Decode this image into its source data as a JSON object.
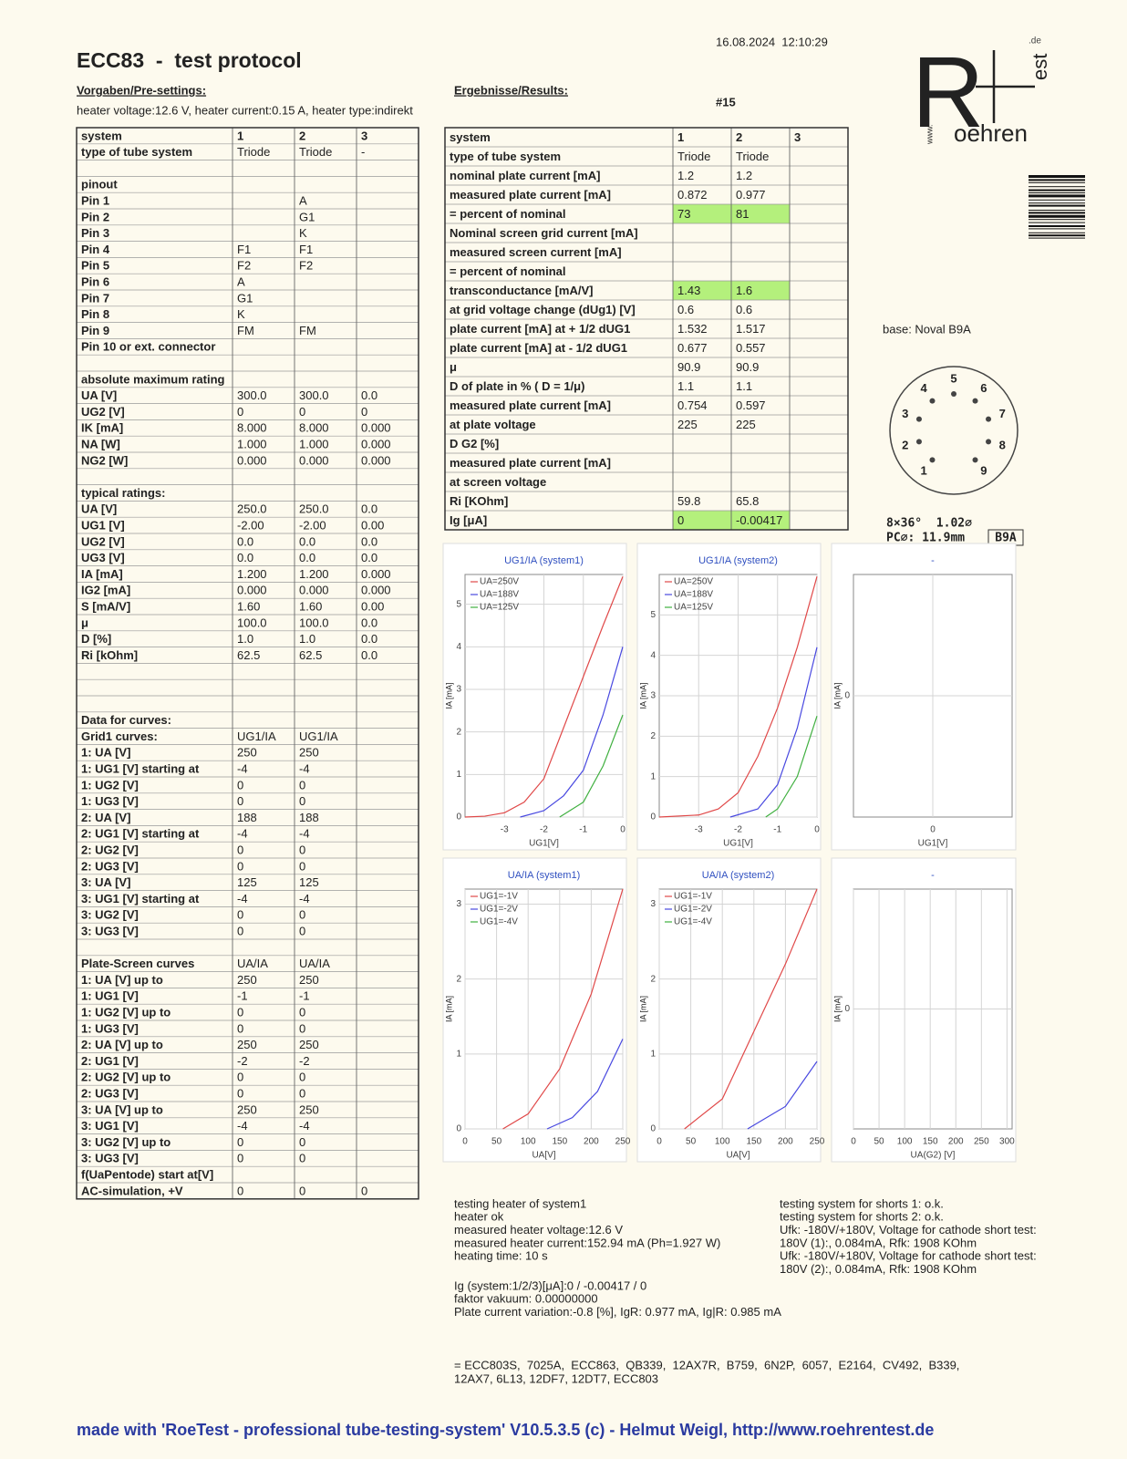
{
  "header": {
    "title": "ECC83  -  test protocol",
    "timestamp": "16.08.2024  12:10:29",
    "number": "#15",
    "presettings_label": "Vorgaben/Pre-settings:",
    "heater": "heater voltage:12.6 V, heater current:0.15 A, heater type:indirekt",
    "results_label": "Ergebnisse/Results:"
  },
  "logo": {
    "r": "R",
    "rest": "oehren",
    "www": "www.",
    "est": "est",
    "de": ".de"
  },
  "left_table": {
    "rows": [
      [
        "system",
        "1",
        "2",
        "3"
      ],
      [
        "type of tube system",
        "Triode",
        "Triode",
        "-"
      ],
      [
        null,
        null,
        null,
        null
      ],
      [
        "pinout",
        null,
        null,
        null
      ],
      [
        "Pin 1",
        null,
        "A",
        null
      ],
      [
        "Pin 2",
        null,
        "G1",
        null
      ],
      [
        "Pin 3",
        null,
        "K",
        null
      ],
      [
        "Pin 4",
        "F1",
        "F1",
        null
      ],
      [
        "Pin 5",
        "F2",
        "F2",
        null
      ],
      [
        "Pin 6",
        "A",
        null,
        null
      ],
      [
        "Pin 7",
        "G1",
        null,
        null
      ],
      [
        "Pin 8",
        "K",
        null,
        null
      ],
      [
        "Pin 9",
        "FM",
        "FM",
        null
      ],
      [
        "Pin 10 or ext. connector",
        null,
        null,
        null
      ],
      [
        null,
        null,
        null,
        null
      ],
      [
        "absolute maximum rating",
        null,
        null,
        null
      ],
      [
        "UA [V]",
        "300.0",
        "300.0",
        "0.0"
      ],
      [
        "UG2 [V]",
        "0",
        "0",
        "0"
      ],
      [
        "IK [mA]",
        "8.000",
        "8.000",
        "0.000"
      ],
      [
        "NA [W]",
        "1.000",
        "1.000",
        "0.000"
      ],
      [
        "NG2 [W]",
        "0.000",
        "0.000",
        "0.000"
      ],
      [
        null,
        null,
        null,
        null
      ],
      [
        "typical ratings:",
        null,
        null,
        null
      ],
      [
        "UA [V]",
        "250.0",
        "250.0",
        "0.0"
      ],
      [
        "UG1 [V]",
        "-2.00",
        "-2.00",
        "0.00"
      ],
      [
        "UG2 [V]",
        "0.0",
        "0.0",
        "0.0"
      ],
      [
        "UG3 [V]",
        "0.0",
        "0.0",
        "0.0"
      ],
      [
        "IA [mA]",
        "1.200",
        "1.200",
        "0.000"
      ],
      [
        "IG2 [mA]",
        "0.000",
        "0.000",
        "0.000"
      ],
      [
        "S [mA/V]",
        "1.60",
        "1.60",
        "0.00"
      ],
      [
        "μ",
        "100.0",
        "100.0",
        "0.0"
      ],
      [
        "D [%]",
        "1.0",
        "1.0",
        "0.0"
      ],
      [
        "Ri [kOhm]",
        "62.5",
        "62.5",
        "0.0"
      ],
      [
        null,
        null,
        null,
        null
      ],
      [
        null,
        null,
        null,
        null
      ],
      [
        null,
        null,
        null,
        null
      ],
      [
        "Data for curves:",
        null,
        null,
        null
      ],
      [
        "Grid1 curves:",
        "UG1/IA",
        "UG1/IA",
        null
      ],
      [
        "1: UA [V]",
        "250",
        "250",
        null
      ],
      [
        "1: UG1 [V] starting at",
        "-4",
        "-4",
        null
      ],
      [
        "1: UG2 [V]",
        "0",
        "0",
        null
      ],
      [
        "1: UG3 [V]",
        "0",
        "0",
        null
      ],
      [
        "2: UA [V]",
        "188",
        "188",
        null
      ],
      [
        "2: UG1 [V] starting at",
        "-4",
        "-4",
        null
      ],
      [
        "2: UG2 [V]",
        "0",
        "0",
        null
      ],
      [
        "2: UG3 [V]",
        "0",
        "0",
        null
      ],
      [
        "3: UA [V]",
        "125",
        "125",
        null
      ],
      [
        "3: UG1 [V] starting at",
        "-4",
        "-4",
        null
      ],
      [
        "3: UG2 [V]",
        "0",
        "0",
        null
      ],
      [
        "3: UG3 [V]",
        "0",
        "0",
        null
      ],
      [
        null,
        null,
        null,
        null
      ],
      [
        "Plate-Screen curves",
        "UA/IA",
        "UA/IA",
        null
      ],
      [
        "1: UA [V] up to",
        "250",
        "250",
        null
      ],
      [
        "1: UG1 [V]",
        "-1",
        "-1",
        null
      ],
      [
        "1: UG2 [V] up to",
        "0",
        "0",
        null
      ],
      [
        "1: UG3 [V]",
        "0",
        "0",
        null
      ],
      [
        "2: UA [V] up to",
        "250",
        "250",
        null
      ],
      [
        "2: UG1 [V]",
        "-2",
        "-2",
        null
      ],
      [
        "2: UG2 [V] up to",
        "0",
        "0",
        null
      ],
      [
        "2: UG3 [V]",
        "0",
        "0",
        null
      ],
      [
        "3: UA [V] up to",
        "250",
        "250",
        null
      ],
      [
        "3: UG1 [V]",
        "-4",
        "-4",
        null
      ],
      [
        "3: UG2 [V] up to",
        "0",
        "0",
        null
      ],
      [
        "3: UG3 [V]",
        "0",
        "0",
        null
      ],
      [
        "f(UaPentode) start at[V]",
        null,
        null,
        null
      ],
      [
        "AC-simulation, +V",
        "0",
        "0",
        "0"
      ]
    ]
  },
  "right_table": {
    "highlight_color": "#b4f07c",
    "highlighted_cells": [
      [
        4,
        1
      ],
      [
        4,
        2
      ],
      [
        8,
        1
      ],
      [
        8,
        2
      ],
      [
        20,
        1
      ],
      [
        20,
        2
      ]
    ],
    "rows": [
      [
        "system",
        "1",
        "2",
        "3"
      ],
      [
        "type of tube system",
        "Triode",
        "Triode",
        null
      ],
      [
        "nominal plate current [mA]",
        "1.2",
        "1.2",
        null
      ],
      [
        "measured plate current [mA]",
        "0.872",
        "0.977",
        null
      ],
      [
        "= percent of nominal",
        "73",
        "81",
        null
      ],
      [
        "Nominal screen grid current [mA]",
        null,
        null,
        null
      ],
      [
        "measured screen current [mA]",
        null,
        null,
        null
      ],
      [
        "= percent of nominal",
        null,
        null,
        null
      ],
      [
        "transconductance [mA/V]",
        "1.43",
        "1.6",
        null
      ],
      [
        "at grid voltage change (dUg1) [V]",
        "0.6",
        "0.6",
        null
      ],
      [
        "plate current [mA] at + 1/2 dUG1",
        "1.532",
        "1.517",
        null
      ],
      [
        "plate current [mA] at - 1/2 dUG1",
        "0.677",
        "0.557",
        null
      ],
      [
        "μ",
        "90.9",
        "90.9",
        null
      ],
      [
        "D of plate in % ( D = 1/μ)",
        "1.1",
        "1.1",
        null
      ],
      [
        "measured plate current [mA]",
        "0.754",
        "0.597",
        null
      ],
      [
        "at plate voltage",
        "225",
        "225",
        null
      ],
      [
        "D G2 [%]",
        null,
        null,
        null
      ],
      [
        "measured plate current [mA]",
        null,
        null,
        null
      ],
      [
        "at screen voltage",
        null,
        null,
        null
      ],
      [
        "Ri [KOhm]",
        "59.8",
        "65.8",
        null
      ],
      [
        "Ig [μA]",
        "0",
        "-0.00417",
        null
      ]
    ]
  },
  "base": {
    "label": "base: Noval B9A",
    "pins": [
      "1",
      "2",
      "3",
      "4",
      "5",
      "6",
      "7",
      "8",
      "9"
    ],
    "spec1": "8×36°  1.02⌀",
    "spec2": "PC⌀: 11.9mm",
    "code": "B9A"
  },
  "charts": [
    {
      "title": "UG1/IA (system1)",
      "x_label": "UG1[V]",
      "y_label": "IA [mA]",
      "xlim": [
        -4,
        0
      ],
      "ylim": [
        0,
        5.7
      ],
      "xticks": [
        -3,
        -2,
        -1,
        0
      ],
      "yticks": [
        0,
        1,
        2,
        3,
        4,
        5
      ],
      "series": [
        {
          "name": "UA=250V",
          "color": "#e04848",
          "x": [
            -4,
            -3.5,
            -3,
            -2.5,
            -2,
            -1.5,
            -1,
            -0.5,
            0
          ],
          "y": [
            0,
            0.02,
            0.1,
            0.35,
            0.9,
            2.1,
            3.3,
            4.5,
            5.65
          ]
        },
        {
          "name": "UA=188V",
          "color": "#4848e0",
          "x": [
            -2.6,
            -2,
            -1.5,
            -1,
            -0.5,
            0
          ],
          "y": [
            0,
            0.15,
            0.5,
            1.1,
            2.4,
            4.0
          ]
        },
        {
          "name": "UA=125V",
          "color": "#40b040",
          "x": [
            -1.6,
            -1,
            -0.5,
            0
          ],
          "y": [
            0,
            0.35,
            1.2,
            2.4
          ]
        }
      ]
    },
    {
      "title": "UG1/IA (system2)",
      "x_label": "UG1[V]",
      "y_label": "IA [mA]",
      "xlim": [
        -4,
        0
      ],
      "ylim": [
        0,
        6
      ],
      "xticks": [
        -3,
        -2,
        -1,
        0
      ],
      "yticks": [
        0,
        1,
        2,
        3,
        4,
        5
      ],
      "series": [
        {
          "name": "UA=250V",
          "color": "#e04848",
          "x": [
            -4,
            -3,
            -2.5,
            -2,
            -1.5,
            -1,
            -0.5,
            0
          ],
          "y": [
            0,
            0.05,
            0.2,
            0.6,
            1.5,
            2.7,
            4.2,
            5.95
          ]
        },
        {
          "name": "UA=188V",
          "color": "#4848e0",
          "x": [
            -2.2,
            -1.5,
            -1,
            -0.5,
            0
          ],
          "y": [
            0,
            0.2,
            0.8,
            2.2,
            4.2
          ]
        },
        {
          "name": "UA=125V",
          "color": "#40b040",
          "x": [
            -1.3,
            -1,
            -0.5,
            0
          ],
          "y": [
            0,
            0.2,
            1.0,
            2.5
          ]
        }
      ]
    },
    {
      "title": "-",
      "x_label": "UG1[V]",
      "y_label": "IA [mA]",
      "xlim": [
        -1,
        1
      ],
      "ylim": [
        -1,
        1
      ],
      "xticks": [
        0
      ],
      "yticks": [
        0
      ],
      "series": []
    },
    {
      "title": "UA/IA (system1)",
      "x_label": "UA[V]",
      "y_label": "IA [mA]",
      "xlim": [
        0,
        250
      ],
      "ylim": [
        0,
        3.2
      ],
      "xticks": [
        0,
        50,
        100,
        150,
        200,
        250
      ],
      "yticks": [
        0,
        1,
        2,
        3
      ],
      "series": [
        {
          "name": "UG1=-1V",
          "color": "#e04848",
          "x": [
            60,
            100,
            150,
            200,
            250
          ],
          "y": [
            0,
            0.2,
            0.8,
            1.8,
            3.2
          ]
        },
        {
          "name": "UG1=-2V",
          "color": "#4848e0",
          "x": [
            130,
            170,
            210,
            250
          ],
          "y": [
            0,
            0.15,
            0.5,
            1.2
          ]
        },
        {
          "name": "UG1=-4V",
          "color": "#40b040",
          "x": [],
          "y": []
        }
      ]
    },
    {
      "title": "UA/IA (system2)",
      "x_label": "UA[V]",
      "y_label": "IA [mA]",
      "xlim": [
        0,
        250
      ],
      "ylim": [
        0,
        3.2
      ],
      "xticks": [
        0,
        50,
        100,
        150,
        200,
        250
      ],
      "yticks": [
        0,
        1,
        2,
        3
      ],
      "series": [
        {
          "name": "UG1=-1V",
          "color": "#e04848",
          "x": [
            40,
            100,
            150,
            200,
            250
          ],
          "y": [
            0,
            0.4,
            1.3,
            2.2,
            3.2
          ]
        },
        {
          "name": "UG1=-2V",
          "color": "#4848e0",
          "x": [
            140,
            200,
            250
          ],
          "y": [
            0,
            0.3,
            0.9
          ]
        },
        {
          "name": "UG1=-4V",
          "color": "#40b040",
          "x": [],
          "y": []
        }
      ]
    },
    {
      "title": "-",
      "x_label": "UA(G2) [V]",
      "y_label": "IA [mA]",
      "xlim": [
        0,
        310
      ],
      "ylim": [
        -1,
        1
      ],
      "xticks": [
        0,
        50,
        100,
        150,
        200,
        250,
        300
      ],
      "yticks": [
        0
      ],
      "series": []
    }
  ],
  "notes": {
    "left": [
      "testing heater of system1",
      "heater ok",
      "measured heater voltage:12.6 V",
      "measured heater current:152.94 mA (Ph=1.927 W)",
      "heating time: 10 s"
    ],
    "right": [
      "testing system for shorts 1: o.k.",
      "testing system for shorts 2: o.k.",
      "Ufk: -180V/+180V, Voltage for cathode short test:",
      "180V (1):, 0.084mA, Rfk: 1908 KOhm",
      "Ufk: -180V/+180V, Voltage for cathode short test:",
      "180V (2):, 0.084mA, Rfk: 1908 KOhm"
    ],
    "vacuum": [
      "Ig (system:1/2/3)[μA]:0 / -0.00417 / 0",
      "faktor vakuum: 0.00000000",
      "Plate current variation:-0.8 [%], IgR: 0.977 mA, Ig|R: 0.985 mA"
    ],
    "equivalents": [
      "= ECC803S,  7025A,  ECC863,  QB339,  12AX7R,  B759,  6N2P,  6057,  E2164,  CV492,  B339,",
      "12AX7, 6L13, 12DF7, 12DT7, ECC803"
    ]
  },
  "footer": "made with 'RoeTest - professional tube-testing-system' V10.5.3.5 (c) - Helmut Weigl, http://www.roehrentest.de"
}
